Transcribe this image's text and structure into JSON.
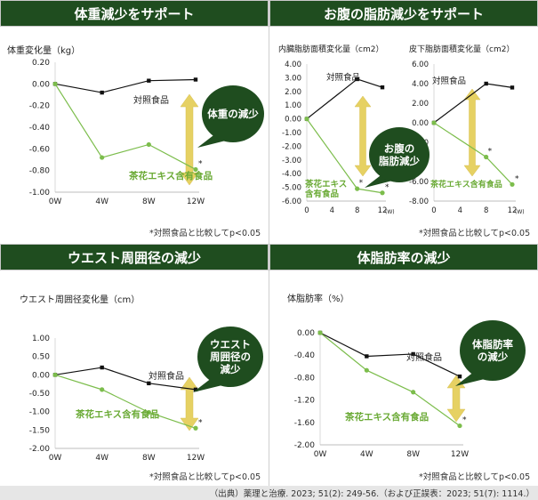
{
  "colors": {
    "header_bg": "#1f4d1f",
    "control": "#111111",
    "test": "#7cbd4c",
    "test_label": "#6aaa35",
    "callout": "#1f4d1f",
    "arrow": "#e6d163"
  },
  "panels": [
    {
      "title": "体重減少をサポート",
      "footnote": "*対照食品と比較してp<0.05"
    },
    {
      "title": "お腹の脂肪減少をサポート",
      "footnote": "*対照食品と比較してp<0.05"
    },
    {
      "title": "ウエスト周囲径の減少",
      "footnote": "*対照食品と比較してp<0.05"
    },
    {
      "title": "体脂肪率の減少",
      "footnote": "*対照食品と比較してp<0.05"
    }
  ],
  "source": "（出典）薬理と治療. 2023; 51(2): 249-56.（および正誤表：2023; 51(7): 1114.）",
  "chart_data": [
    {
      "type": "line",
      "ylabel": "体重変化量（kg）",
      "categories": [
        "0W",
        "4W",
        "8W",
        "12W"
      ],
      "ylim": [
        -1.0,
        0.2
      ],
      "yticks": [
        "0.20",
        "0.00",
        "-0.20",
        "-0.40",
        "-0.60",
        "-0.80",
        "-1.00"
      ],
      "series": [
        {
          "name": "対照食品",
          "values": [
            0.0,
            -0.08,
            0.03,
            0.04
          ]
        },
        {
          "name": "茶花エキス含有食品",
          "values": [
            0.0,
            -0.68,
            -0.56,
            -0.79
          ]
        }
      ],
      "significance": "*",
      "callout": [
        "体重の減少"
      ]
    },
    {
      "type": "line",
      "ylabel": "内臓脂肪面積変化量（cm2）",
      "categories": [
        "0",
        "4",
        "8",
        "12"
      ],
      "x_unit": "(W)",
      "ylim": [
        -6.0,
        4.0
      ],
      "yticks": [
        "4.00",
        "3.00",
        "2.00",
        "1.00",
        "0.00",
        "-1.00",
        "-2.00",
        "-3.00",
        "-4.00",
        "-5.00",
        "-6.00"
      ],
      "series": [
        {
          "name": "対照食品",
          "values": [
            0.0,
            null,
            2.9,
            2.3
          ]
        },
        {
          "name": "茶花エキス含有食品",
          "values": [
            0.0,
            null,
            -5.1,
            -5.4
          ]
        }
      ],
      "significance": "*"
    },
    {
      "type": "line",
      "ylabel": "皮下脂肪面積変化量（cm2）",
      "categories": [
        "0",
        "4",
        "8",
        "12"
      ],
      "x_unit": "(W)",
      "ylim": [
        -8.0,
        6.0
      ],
      "yticks": [
        "6.00",
        "4.00",
        "2.00",
        "0.00",
        "-2.00",
        "-4.00",
        "-6.00",
        "-8.00"
      ],
      "series": [
        {
          "name": "対照食品",
          "values": [
            0.0,
            null,
            4.0,
            3.6
          ]
        },
        {
          "name": "茶花エキス含有食品",
          "values": [
            0.0,
            null,
            -3.5,
            -6.3
          ]
        }
      ],
      "significance": "*",
      "callout": [
        "お腹の",
        "脂肪減少"
      ]
    },
    {
      "type": "line",
      "ylabel": "ウエスト周囲径変化量（cm）",
      "categories": [
        "0W",
        "4W",
        "8W",
        "12W"
      ],
      "ylim": [
        -2.0,
        1.0
      ],
      "yticks": [
        "1.00",
        "0.50",
        "0.00",
        "-0.50",
        "-1.00",
        "-1.50",
        "-2.00"
      ],
      "series": [
        {
          "name": "対照食品",
          "values": [
            0.0,
            0.2,
            -0.23,
            -0.4
          ]
        },
        {
          "name": "茶花エキス含有食品",
          "values": [
            0.0,
            -0.4,
            -1.02,
            -1.45
          ]
        }
      ],
      "significance": "*",
      "callout": [
        "ウエスト",
        "周囲径の",
        "減少"
      ]
    },
    {
      "type": "line",
      "ylabel": "体脂肪率（%）",
      "categories": [
        "0W",
        "4W",
        "8W",
        "12W"
      ],
      "ylim": [
        -2.0,
        0.0
      ],
      "yticks": [
        "0.00",
        "-0.40",
        "-0.80",
        "-1.20",
        "-1.60",
        "-2.00"
      ],
      "series": [
        {
          "name": "対照食品",
          "values": [
            0.0,
            -0.42,
            -0.38,
            -0.78
          ]
        },
        {
          "name": "茶花エキス含有食品",
          "values": [
            0.0,
            -0.67,
            -1.06,
            -1.66
          ]
        }
      ],
      "significance": "*",
      "callout": [
        "体脂肪率",
        "の減少"
      ]
    }
  ]
}
